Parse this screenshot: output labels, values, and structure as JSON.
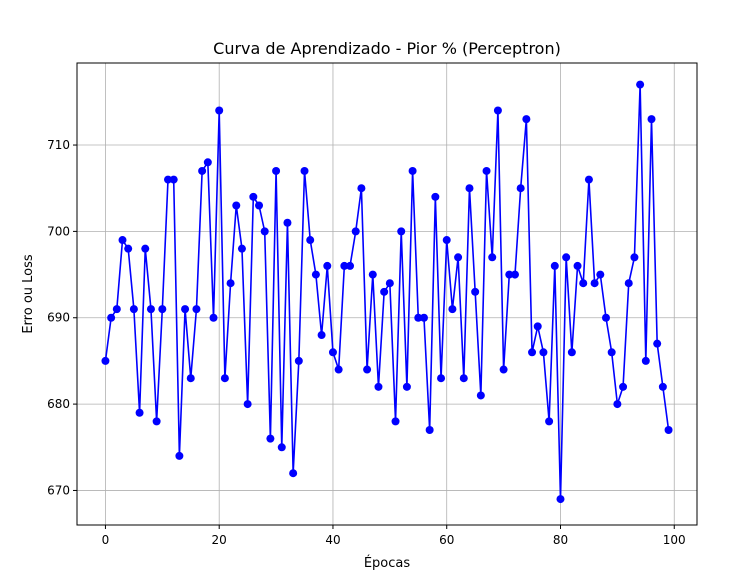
{
  "chart_data": {
    "type": "line",
    "title": "Curva de Aprendizado - Pior % (Perceptron)",
    "xlabel": "Épocas",
    "ylabel": "Erro ou Loss",
    "xlim": [
      -5,
      104
    ],
    "ylim": [
      666,
      719.5
    ],
    "xticks": [
      0,
      20,
      40,
      60,
      80,
      100
    ],
    "yticks": [
      670,
      680,
      690,
      700,
      710
    ],
    "grid": true,
    "series": [
      {
        "color": "#0000ff",
        "marker": "circle",
        "x": [
          0,
          1,
          2,
          3,
          4,
          5,
          6,
          7,
          8,
          9,
          10,
          11,
          12,
          13,
          14,
          15,
          16,
          17,
          18,
          19,
          20,
          21,
          22,
          23,
          24,
          25,
          26,
          27,
          28,
          29,
          30,
          31,
          32,
          33,
          34,
          35,
          36,
          37,
          38,
          39,
          40,
          41,
          42,
          43,
          44,
          45,
          46,
          47,
          48,
          49,
          50,
          51,
          52,
          53,
          54,
          55,
          56,
          57,
          58,
          59,
          60,
          61,
          62,
          63,
          64,
          65,
          66,
          67,
          68,
          69,
          70,
          71,
          72,
          73,
          74,
          75,
          76,
          77,
          78,
          79,
          80,
          81,
          82,
          83,
          84,
          85,
          86,
          87,
          88,
          89,
          90,
          91,
          92,
          93,
          94,
          95,
          96,
          97,
          98,
          99
        ],
        "y": [
          685,
          690,
          691,
          699,
          698,
          691,
          679,
          698,
          691,
          678,
          691,
          706,
          706,
          674,
          691,
          683,
          691,
          707,
          708,
          690,
          714,
          683,
          694,
          703,
          698,
          680,
          704,
          703,
          700,
          676,
          707,
          675,
          701,
          672,
          685,
          707,
          699,
          695,
          688,
          696,
          686,
          684,
          696,
          696,
          700,
          705,
          684,
          695,
          682,
          693,
          694,
          678,
          700,
          682,
          707,
          690,
          690,
          677,
          704,
          683,
          699,
          691,
          697,
          683,
          705,
          693,
          681,
          707,
          697,
          714,
          684,
          695,
          695,
          705,
          713,
          686,
          689,
          686,
          678,
          696,
          669,
          697,
          686,
          696,
          694,
          706,
          694,
          695,
          690,
          686,
          680,
          682,
          694,
          697,
          717,
          685,
          713,
          687,
          682,
          677
        ]
      }
    ]
  }
}
